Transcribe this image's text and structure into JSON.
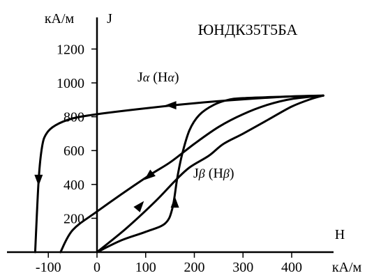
{
  "chart_data": {
    "type": "line",
    "title": "ЮНДК35Т5БА",
    "y_unit": "кА/м",
    "y_symbol": "J",
    "x_symbol": "H",
    "x_unit": "кА/м",
    "xlim": [
      -135,
      465
    ],
    "ylim": [
      0,
      1350
    ],
    "x_ticks": [
      -100,
      0,
      100,
      200,
      300,
      400
    ],
    "x_tick_labels": [
      "-100",
      "0",
      "100",
      "200",
      "300",
      "400"
    ],
    "y_ticks": [
      200,
      400,
      600,
      800,
      1000,
      1200
    ],
    "y_tick_labels": [
      "200",
      "400",
      "600",
      "800",
      "1000",
      "1200"
    ],
    "grid": false,
    "annotations": [
      {
        "text_main": "J",
        "text_sub": "α",
        "text_paren_main": "H",
        "text_paren_sub": "α",
        "x": 185,
        "y": 985,
        "ref": "alpha"
      },
      {
        "text_main": "J",
        "text_sub": "β",
        "text_paren_main": "H",
        "text_paren_sub": "β",
        "x": 185,
        "y": 430,
        "ref": "beta"
      }
    ],
    "series": [
      {
        "id": "alpha_outer",
        "values": [
          [
            -127,
            0
          ],
          [
            -120,
            420
          ],
          [
            -113,
            620
          ],
          [
            -104,
            700
          ],
          [
            -85,
            750
          ],
          [
            -50,
            790
          ],
          [
            0,
            815
          ],
          [
            100,
            850
          ],
          [
            200,
            880
          ],
          [
            300,
            903
          ],
          [
            400,
            920
          ],
          [
            465,
            925
          ]
        ]
      },
      {
        "id": "alpha_inner",
        "values": [
          [
            -75,
            0
          ],
          [
            -50,
            130
          ],
          [
            0,
            240
          ],
          [
            100,
            440
          ],
          [
            150,
            530
          ],
          [
            200,
            640
          ],
          [
            250,
            740
          ],
          [
            300,
            815
          ],
          [
            350,
            870
          ],
          [
            400,
            905
          ],
          [
            465,
            925
          ]
        ]
      },
      {
        "id": "beta_loop_lower",
        "values": [
          [
            0,
            0
          ],
          [
            50,
            70
          ],
          [
            100,
            120
          ],
          [
            140,
            170
          ],
          [
            155,
            260
          ],
          [
            165,
            440
          ],
          [
            175,
            580
          ],
          [
            190,
            720
          ],
          [
            210,
            810
          ],
          [
            240,
            870
          ],
          [
            270,
            900
          ],
          [
            300,
            910
          ],
          [
            380,
            918
          ],
          [
            465,
            925
          ]
        ]
      },
      {
        "id": "beta_loop_upper",
        "values": [
          [
            0,
            0
          ],
          [
            60,
            140
          ],
          [
            120,
            300
          ],
          [
            160,
            420
          ],
          [
            190,
            500
          ],
          [
            230,
            570
          ],
          [
            260,
            640
          ],
          [
            300,
            700
          ],
          [
            350,
            780
          ],
          [
            400,
            860
          ],
          [
            440,
            905
          ],
          [
            465,
            925
          ]
        ]
      }
    ],
    "arrows": [
      {
        "series": "alpha_outer",
        "at": [
          150,
          868
        ],
        "dir": "left"
      },
      {
        "series": "alpha_outer",
        "at": [
          -120,
          420
        ],
        "dir": "down"
      },
      {
        "series": "alpha_inner",
        "at": [
          105,
          445
        ],
        "dir": "down-left"
      },
      {
        "series": "beta_loop_upper",
        "at": [
          90,
          280
        ],
        "dir": "up-right"
      },
      {
        "series": "beta_loop_lower",
        "at": [
          160,
          300
        ],
        "dir": "up"
      }
    ]
  }
}
